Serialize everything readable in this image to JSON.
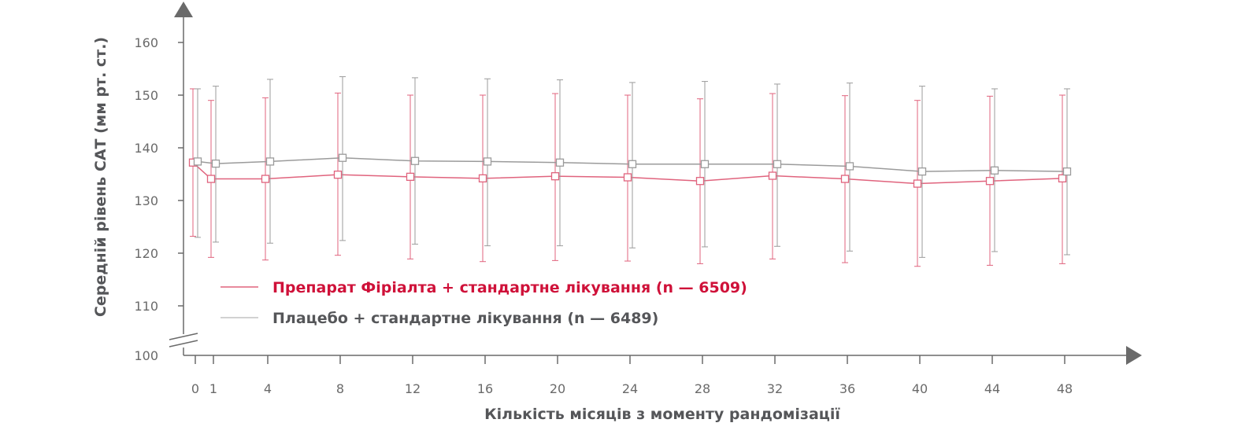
{
  "chart_data": {
    "type": "line",
    "xlabel": "Кількість місяців з моменту рандомізації",
    "ylabel": "Середній рівень САТ (мм рт. ст.)",
    "x": [
      0,
      1,
      4,
      8,
      12,
      16,
      20,
      24,
      28,
      32,
      36,
      40,
      44,
      48
    ],
    "x_tick_labels": [
      "0",
      "1",
      "4",
      "8",
      "12",
      "16",
      "20",
      "24",
      "28",
      "32",
      "36",
      "40",
      "44",
      "48"
    ],
    "y_tick_labels": [
      "100",
      "110",
      "120",
      "130",
      "140",
      "150",
      "160"
    ],
    "ylim": [
      100,
      160
    ],
    "y_axis_break": "between 100 and 110",
    "legend_placement": "inside-bottom-left",
    "grid": false,
    "series": [
      {
        "name": "Препарат Фіріалта + стандартне лікування (n — 6509)",
        "color": "#e0637d",
        "legend_text_color": "#cf1139",
        "marker": "hollow-square",
        "values": [
          137.2,
          134.1,
          134.1,
          134.9,
          134.5,
          134.2,
          134.6,
          134.4,
          133.7,
          134.7,
          134.1,
          133.2,
          133.7,
          134.2
        ],
        "error_upper": [
          151.2,
          149.0,
          149.5,
          150.4,
          150.0,
          150.0,
          150.3,
          150.0,
          149.3,
          150.3,
          149.9,
          149.0,
          149.8,
          150.0
        ],
        "error_lower": [
          123.2,
          119.2,
          118.7,
          119.6,
          118.9,
          118.4,
          118.6,
          118.5,
          118.0,
          118.9,
          118.2,
          117.5,
          117.7,
          118.0
        ]
      },
      {
        "name": "Плацебо + стандартне лікування (n — 6489)",
        "color": "#9b9b9b",
        "legend_text_color": "#555659",
        "marker": "hollow-square",
        "values": [
          137.4,
          137.0,
          137.4,
          138.1,
          137.5,
          137.4,
          137.2,
          136.9,
          136.9,
          136.9,
          136.5,
          135.5,
          135.7,
          135.5
        ],
        "error_upper": [
          151.2,
          151.7,
          153.0,
          153.5,
          153.3,
          153.1,
          152.9,
          152.4,
          152.6,
          152.1,
          152.3,
          151.7,
          151.2,
          151.2
        ],
        "error_lower": [
          123.0,
          122.1,
          121.9,
          122.4,
          121.7,
          121.4,
          121.4,
          121.0,
          121.2,
          121.3,
          120.4,
          119.2,
          120.3,
          119.7
        ]
      }
    ]
  }
}
